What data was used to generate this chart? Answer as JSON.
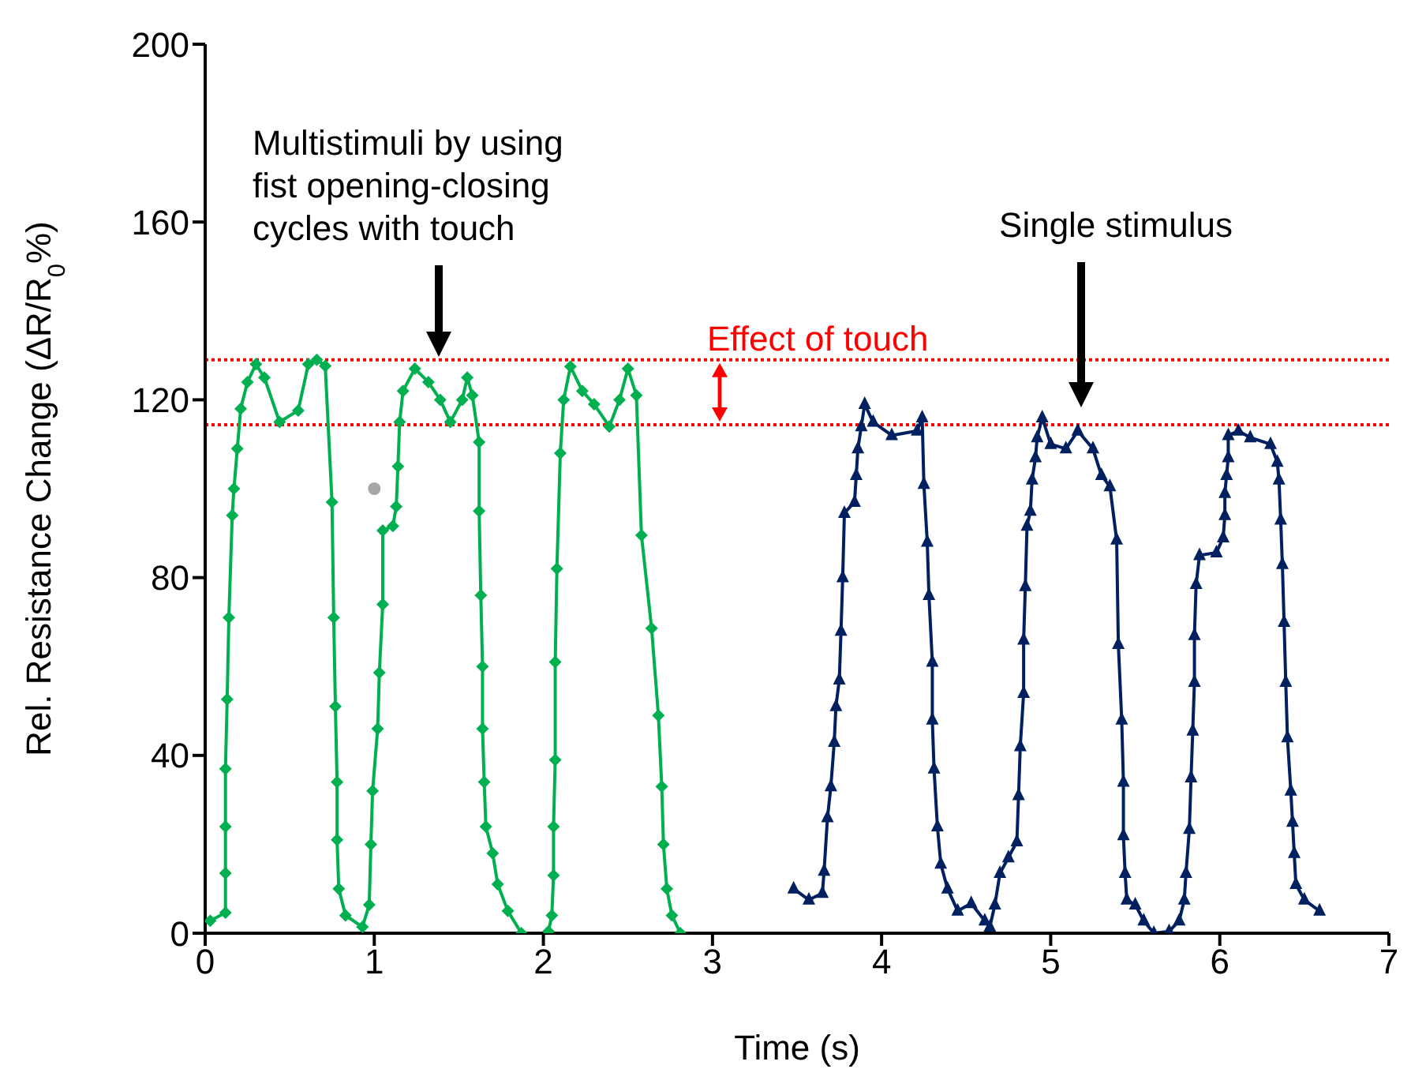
{
  "chart_data": {
    "type": "line",
    "xlabel": "Time (s)",
    "ylabel": "Rel. Resistance Change (ΔR/R$_{0}$%)",
    "xlim": [
      0,
      7
    ],
    "xticks": [
      0,
      1,
      2,
      3,
      4,
      5,
      6,
      7
    ],
    "ylim": [
      0,
      200
    ],
    "yticks": [
      0,
      40,
      80,
      120,
      160,
      200
    ],
    "series": [
      {
        "color": "#00b050",
        "marker": "diamond",
        "x": [
          0.03,
          0.12,
          0.12,
          0.12,
          0.12,
          0.13,
          0.14,
          0.16,
          0.17,
          0.19,
          0.21,
          0.25,
          0.3,
          0.35,
          0.44,
          0.55,
          0.61,
          0.66,
          0.71,
          0.75,
          0.76,
          0.77,
          0.78,
          0.78,
          0.79,
          0.83,
          0.93,
          0.97,
          0.98,
          0.99,
          1.02,
          1.03,
          1.05,
          1.05,
          1.11,
          1.13,
          1.14,
          1.15,
          1.17,
          1.24,
          1.32,
          1.39,
          1.45,
          1.52,
          1.55,
          1.58,
          1.62,
          1.62,
          1.63,
          1.64,
          1.64,
          1.65,
          1.66,
          1.7,
          1.73,
          1.79,
          1.87
        ],
        "values": [
          2.8,
          4.6,
          13.5,
          24,
          37,
          52.6,
          71,
          94,
          100,
          109,
          118,
          124,
          128,
          125,
          115,
          117.6,
          128,
          129,
          127.6,
          97,
          71,
          51,
          34,
          21,
          10,
          4,
          1.4,
          6.4,
          20,
          32,
          46,
          58.6,
          74,
          90.6,
          91.6,
          96,
          105,
          115,
          122,
          127,
          124,
          120,
          115,
          120,
          125,
          121,
          110.5,
          95,
          76,
          60,
          46,
          34,
          24,
          18,
          11,
          5,
          0
        ]
      },
      {
        "color": "#00b050",
        "marker": "diamond",
        "x": [
          2.03,
          2.05,
          2.06,
          2.06,
          2.07,
          2.07,
          2.08,
          2.1,
          2.12,
          2.16,
          2.23,
          2.3,
          2.39,
          2.45,
          2.5,
          2.55,
          2.58,
          2.64,
          2.68,
          2.7,
          2.71,
          2.73,
          2.76,
          2.81
        ],
        "values": [
          0.4,
          4,
          13,
          24,
          39,
          61,
          82,
          108,
          120,
          127.5,
          122,
          119,
          114,
          120,
          127,
          121,
          89.5,
          68.6,
          49,
          33,
          20,
          10,
          4,
          0
        ]
      },
      {
        "color": "#002060",
        "marker": "triangle",
        "x": [
          3.48,
          3.57,
          3.65,
          3.66,
          3.68,
          3.7,
          3.72,
          3.73,
          3.75,
          3.76,
          3.77,
          3.78,
          3.84,
          3.85,
          3.86,
          3.88,
          3.9,
          3.95,
          4.06,
          4.21,
          4.24,
          4.25,
          4.27,
          4.28,
          4.3,
          4.3,
          4.31,
          4.33,
          4.35,
          4.39,
          4.45,
          4.53,
          4.61,
          4.64,
          4.67,
          4.7,
          4.75,
          4.8,
          4.81,
          4.82,
          4.84,
          4.84,
          4.85,
          4.86,
          4.88,
          4.89,
          4.91,
          4.92,
          4.95,
          5.0,
          5.09,
          5.16,
          5.25,
          5.3,
          5.35,
          5.39,
          5.4,
          5.42,
          5.43,
          5.43,
          5.44,
          5.45,
          5.5,
          5.55,
          5.61,
          5.7,
          5.76,
          5.79,
          5.8,
          5.82,
          5.83,
          5.84,
          5.85,
          5.85,
          5.86,
          5.88,
          5.98,
          6.02,
          6.03,
          6.03,
          6.04,
          6.05,
          6.05,
          6.11,
          6.18,
          6.3,
          6.34,
          6.35,
          6.36,
          6.37,
          6.38,
          6.39,
          6.4,
          6.42,
          6.43,
          6.44,
          6.45,
          6.5,
          6.59
        ],
        "values": [
          10,
          7.5,
          9,
          14,
          26,
          33,
          43,
          51,
          57,
          68,
          80,
          94.5,
          97,
          103,
          109,
          114,
          119,
          115,
          112,
          113,
          116,
          101,
          88,
          76,
          61,
          48,
          37,
          24,
          15.6,
          10,
          5,
          6.7,
          2.8,
          1.4,
          6.4,
          13.5,
          17,
          20.6,
          31,
          42,
          54,
          66,
          78,
          91.6,
          95,
          102,
          107,
          111.5,
          116,
          110,
          109,
          113,
          109,
          103,
          100.5,
          88.5,
          65,
          48,
          34,
          22,
          13.5,
          7.5,
          6.4,
          2.8,
          0,
          0.4,
          2.8,
          7.5,
          13.5,
          23.4,
          35,
          45.5,
          56.5,
          67,
          78.5,
          85,
          85.6,
          89,
          94,
          99,
          103,
          107,
          112,
          113,
          111.5,
          110,
          106,
          102,
          93,
          83,
          70,
          56.5,
          44,
          32,
          25,
          18,
          11,
          7.5,
          5
        ]
      },
      {
        "type": "scatter",
        "color": "#a6a6a6",
        "marker": "circle",
        "x": [
          1.0
        ],
        "values": [
          100
        ]
      }
    ],
    "ref_lines": [
      {
        "axis": "y",
        "value": 129,
        "color": "#ff0000",
        "line_style": "dotted"
      },
      {
        "axis": "y",
        "value": 114.4,
        "color": "#ff0000",
        "line_style": "dotted"
      }
    ],
    "annotations": [
      "Multistimuli by using\nfist opening-closing\ncycles with touch",
      "Single stimulus",
      "Effect of touch"
    ]
  }
}
